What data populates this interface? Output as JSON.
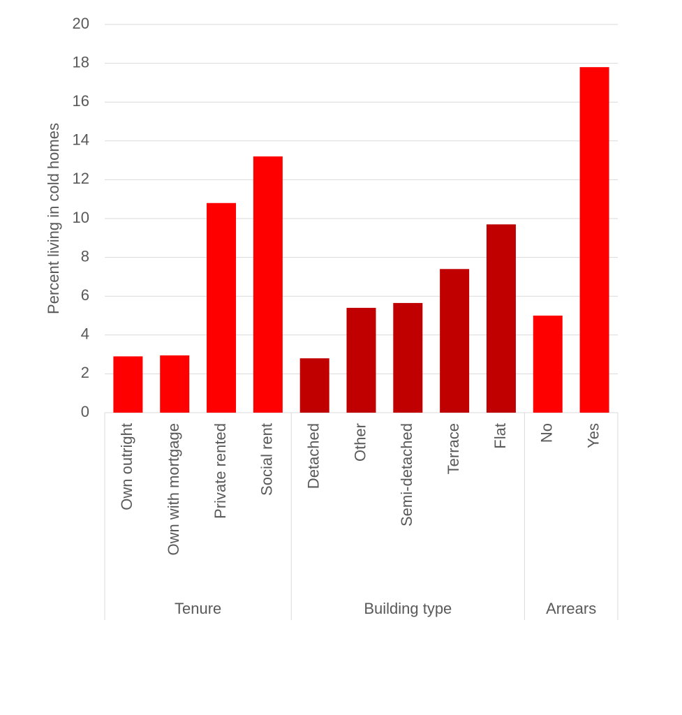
{
  "chart_data": {
    "type": "bar",
    "y_label": "Percent living in cold homes",
    "groups": [
      {
        "name": "Tenure",
        "color": "#ff0000",
        "categories": [
          "Own outright",
          "Own with mortgage",
          "Private rented",
          "Social rent"
        ],
        "values": [
          2.9,
          2.95,
          10.8,
          13.2
        ]
      },
      {
        "name": "Building type",
        "color": "#c00000",
        "categories": [
          "Detached",
          "Other",
          "Semi-detached",
          "Terrace",
          "Flat"
        ],
        "values": [
          2.8,
          5.4,
          5.65,
          7.4,
          9.7
        ]
      },
      {
        "name": "Arrears",
        "color": "#ff0000",
        "categories": [
          "No",
          "Yes"
        ],
        "values": [
          5.0,
          17.8
        ]
      }
    ],
    "ylim": [
      0,
      20
    ],
    "yticks": [
      0,
      2,
      4,
      6,
      8,
      10,
      12,
      14,
      16,
      18,
      20
    ],
    "grid": true
  }
}
